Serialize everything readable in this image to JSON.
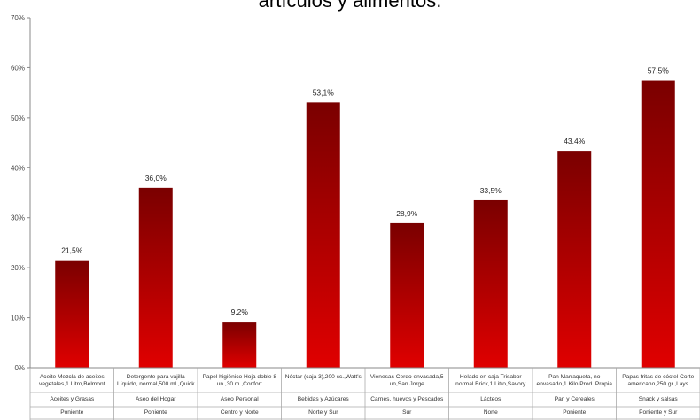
{
  "chart_data": {
    "type": "bar",
    "title": "artículos y alimentos.",
    "ylim": [
      0,
      70
    ],
    "yticks": [
      "0%",
      "10%",
      "20%",
      "30%",
      "40%",
      "50%",
      "60%",
      "70%"
    ],
    "grid": false,
    "colors": {
      "bar_top": "#7a0000",
      "bar_bottom": "#e00000"
    },
    "categories": [
      {
        "product": "Aceite Mezcla de aceites vegetales,1 Litro,Belmont",
        "group": "Aceites y Grasas",
        "zone": "Poniente"
      },
      {
        "product": "Detergente para vajilla Líquido, normal,500 ml.,Quick",
        "group": "Aseo del Hogar",
        "zone": "Poniente"
      },
      {
        "product": "Papel higiénico Hoja doble 8 un.,30 m.,Confort",
        "group": "Aseo Personal",
        "zone": "Centro y Norte"
      },
      {
        "product": "Néctar (caja 3),200 cc.,Watt's",
        "group": "Bebidas y Azúcares",
        "zone": "Norte y Sur"
      },
      {
        "product": "Vienesas Cerdo envasada,5 un,San Jorge",
        "group": "Carnes, huevos y Pescados",
        "zone": "Sur"
      },
      {
        "product": "Helado en caja Trisabor normal Brick,1 Litro,Savory",
        "group": "Lácteos",
        "zone": "Norte"
      },
      {
        "product": "Pan Marraqueta, no envasado,1 Kilo,Prod. Propia",
        "group": "Pan y Cereales",
        "zone": "Poniente"
      },
      {
        "product": "Papas fritas de cóctel Corte americano,250 gr.,Lays",
        "group": "Snack y salsas",
        "zone": "Poniente y Sur"
      }
    ],
    "values": [
      21.5,
      36.0,
      9.2,
      53.1,
      28.9,
      33.5,
      43.4,
      57.5
    ],
    "value_labels": [
      "21,5%",
      "36,0%",
      "9,2%",
      "53,1%",
      "28,9%",
      "33,5%",
      "43,4%",
      "57,5%"
    ]
  }
}
